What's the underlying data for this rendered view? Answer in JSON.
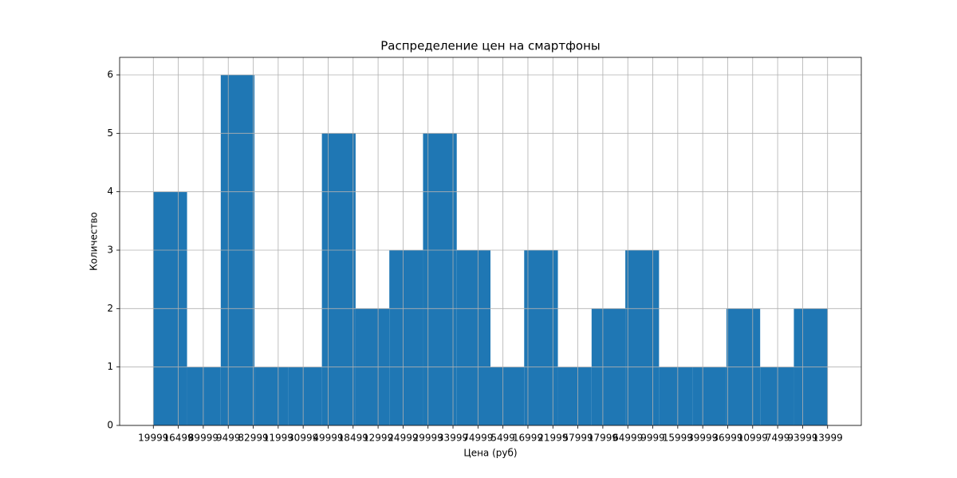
{
  "chart_data": {
    "type": "histogram",
    "title": "Распределение цен на смартфоны",
    "xlabel": "Цена (руб)",
    "ylabel": "Количество",
    "bins": [
      0,
      1.35,
      2.7,
      4.05,
      5.4,
      6.75,
      8.1,
      9.45,
      10.8,
      12.15,
      13.5,
      14.85,
      16.2,
      17.55,
      18.9,
      20.25,
      21.6,
      22.95,
      24.3,
      25.65,
      27
    ],
    "values": [
      4,
      1,
      6,
      1,
      1,
      5,
      2,
      3,
      5,
      3,
      1,
      3,
      1,
      2,
      3,
      1,
      1,
      2,
      1,
      2
    ],
    "color": "#1f77b4",
    "xlim": [
      -1.35,
      28.35
    ],
    "ylim": [
      0,
      6.3
    ],
    "xticks": [
      {
        "value": 0,
        "label": "19999"
      },
      {
        "value": 1,
        "label": "16499"
      },
      {
        "value": 2,
        "label": "89999"
      },
      {
        "value": 3,
        "label": "9499"
      },
      {
        "value": 4,
        "label": "82999"
      },
      {
        "value": 5,
        "label": "11999"
      },
      {
        "value": 6,
        "label": "30999"
      },
      {
        "value": 7,
        "label": "49999"
      },
      {
        "value": 8,
        "label": "18499"
      },
      {
        "value": 9,
        "label": "12999"
      },
      {
        "value": 10,
        "label": "24999"
      },
      {
        "value": 11,
        "label": "29999"
      },
      {
        "value": 12,
        "label": "33999"
      },
      {
        "value": 13,
        "label": "74999"
      },
      {
        "value": 14,
        "label": "5499"
      },
      {
        "value": 15,
        "label": "16999"
      },
      {
        "value": 16,
        "label": "21999"
      },
      {
        "value": 17,
        "label": "57999"
      },
      {
        "value": 18,
        "label": "17999"
      },
      {
        "value": 19,
        "label": "64999"
      },
      {
        "value": 20,
        "label": "9999"
      },
      {
        "value": 21,
        "label": "15999"
      },
      {
        "value": 22,
        "label": "39999"
      },
      {
        "value": 23,
        "label": "36999"
      },
      {
        "value": 24,
        "label": "10999"
      },
      {
        "value": 25,
        "label": "7499"
      },
      {
        "value": 26,
        "label": "93999"
      },
      {
        "value": 27,
        "label": "13999"
      }
    ],
    "yticks": [
      0,
      1,
      2,
      3,
      4,
      5,
      6
    ],
    "grid": true
  }
}
